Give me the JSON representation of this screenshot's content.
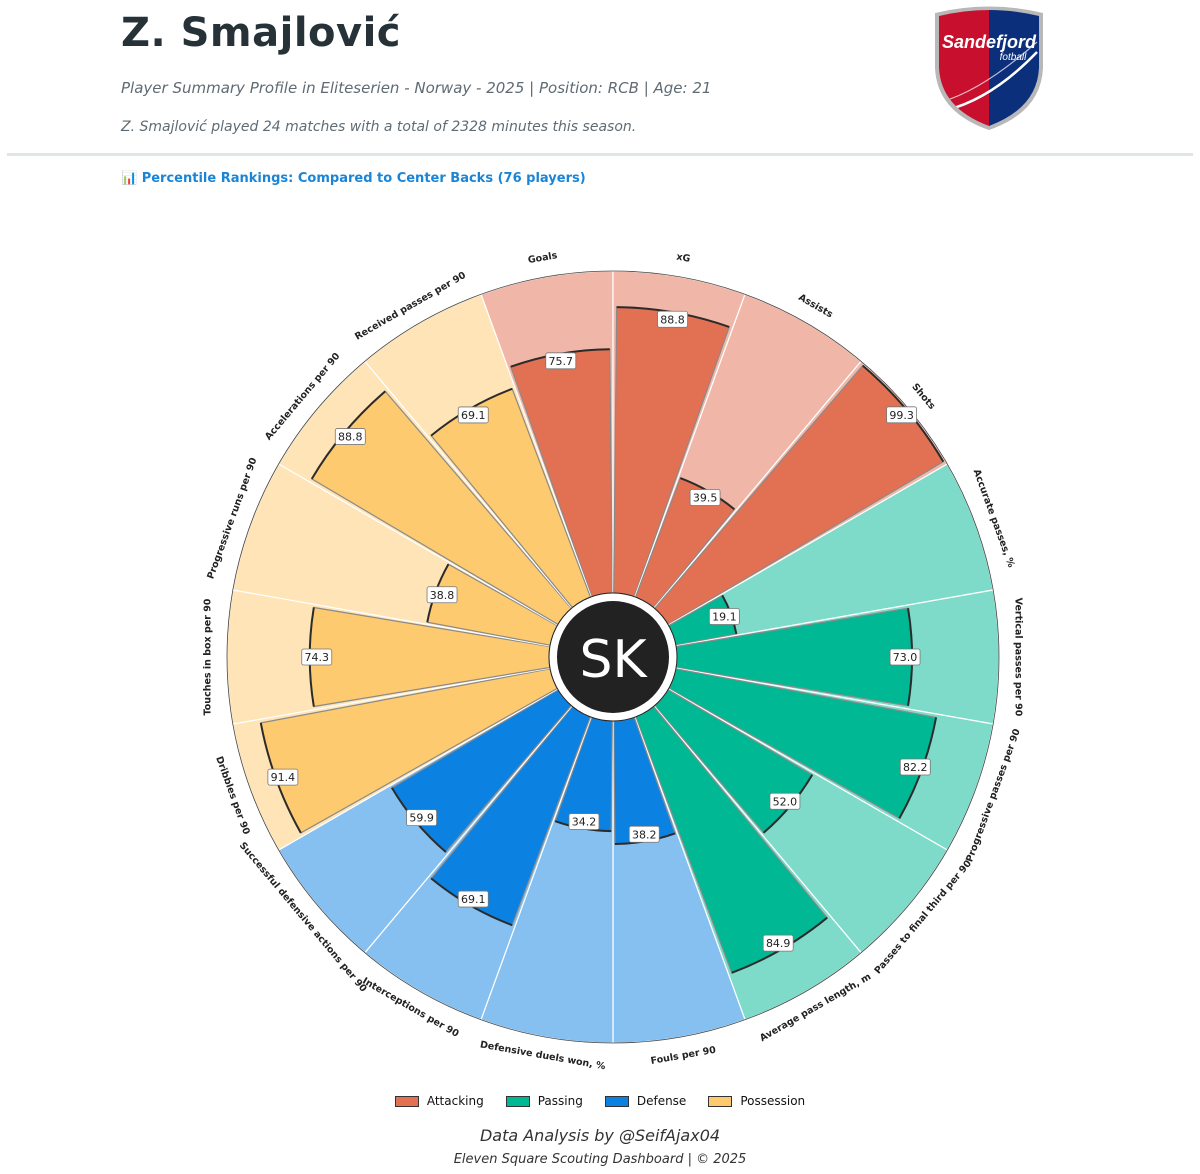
{
  "header": {
    "player_name": "Z. Smajlović",
    "subtitle": "Player Summary Profile in Eliteserien - Norway - 2025 | Position: RCB | Age: 21",
    "summary": "Z. Smajlović played 24 matches with a total of 2328 minutes this season.",
    "logo_text": "Sandefjord",
    "logo_subtext": "fotball"
  },
  "percentile_heading": "📊 Percentile Rankings: Compared to Center Backs (76 players)",
  "center_initials": "SK",
  "colors": {
    "Attacking": "#e27053",
    "Passing": "#00b894",
    "Defense": "#0b82e2",
    "Possession": "#fdca6f",
    "logo_red": "#c8102e",
    "logo_blue": "#0b2f7a"
  },
  "chart_data": {
    "type": "pizza",
    "scale": [
      0,
      100
    ],
    "categories": [
      "Attacking",
      "Passing",
      "Defense",
      "Possession"
    ],
    "metrics": [
      {
        "label": "Goals",
        "category": "Attacking",
        "value": 75.7
      },
      {
        "label": "xG",
        "category": "Attacking",
        "value": 88.8
      },
      {
        "label": "Assists",
        "category": "Attacking",
        "value": 39.5
      },
      {
        "label": "Shots",
        "category": "Attacking",
        "value": 99.3
      },
      {
        "label": "Accurate passes, %",
        "category": "Passing",
        "value": 19.1
      },
      {
        "label": "Vertical passes per 90",
        "category": "Passing",
        "value": 73.0
      },
      {
        "label": "Progressive passes per 90",
        "category": "Passing",
        "value": 82.2
      },
      {
        "label": "Passes to final third per 90",
        "category": "Passing",
        "value": 52.0
      },
      {
        "label": "Average pass length, m",
        "category": "Passing",
        "value": 84.9
      },
      {
        "label": "Fouls per 90",
        "category": "Defense",
        "value": 38.2
      },
      {
        "label": "Defensive duels won, %",
        "category": "Defense",
        "value": 34.2
      },
      {
        "label": "Interceptions per 90",
        "category": "Defense",
        "value": 69.1
      },
      {
        "label": "Successful defensive actions per 90",
        "category": "Defense",
        "value": 59.9
      },
      {
        "label": "Dribbles per 90",
        "category": "Possession",
        "value": 91.4
      },
      {
        "label": "Touches in box per 90",
        "category": "Possession",
        "value": 74.3
      },
      {
        "label": "Progressive runs per 90",
        "category": "Possession",
        "value": 38.8
      },
      {
        "label": "Accelerations per 90",
        "category": "Possession",
        "value": 88.8
      },
      {
        "label": "Received passes per 90",
        "category": "Possession",
        "value": 69.1
      }
    ],
    "legend": [
      "Attacking",
      "Passing",
      "Defense",
      "Possession"
    ],
    "legend_position": "bottom"
  },
  "credit": "Data Analysis by @SeifAjax04",
  "footer": "Eleven Square Scouting Dashboard | © 2025"
}
